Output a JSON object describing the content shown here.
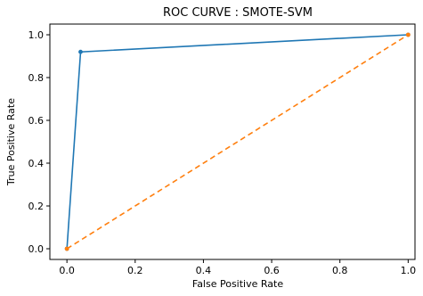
{
  "chart_data": {
    "type": "line",
    "title": "ROC CURVE :  SMOTE-SVM",
    "xlabel": "False Positive Rate",
    "ylabel": "True Positive Rate",
    "xlim": [
      -0.05,
      1.02
    ],
    "ylim": [
      -0.05,
      1.05
    ],
    "xticks": [
      "0.0",
      "0.2",
      "0.4",
      "0.6",
      "0.8",
      "1.0"
    ],
    "yticks": [
      "0.0",
      "0.2",
      "0.4",
      "0.6",
      "0.8",
      "1.0"
    ],
    "grid": false,
    "legend": "none",
    "series": [
      {
        "color": "#1f77b4",
        "style": "solid",
        "marker": "dot",
        "x": [
          0.0,
          0.04,
          1.0
        ],
        "y": [
          0.0,
          0.92,
          1.0
        ]
      },
      {
        "color": "#ff7f0e",
        "style": "dashed",
        "marker": "dot",
        "x": [
          0.0,
          1.0
        ],
        "y": [
          0.0,
          1.0
        ]
      }
    ]
  }
}
